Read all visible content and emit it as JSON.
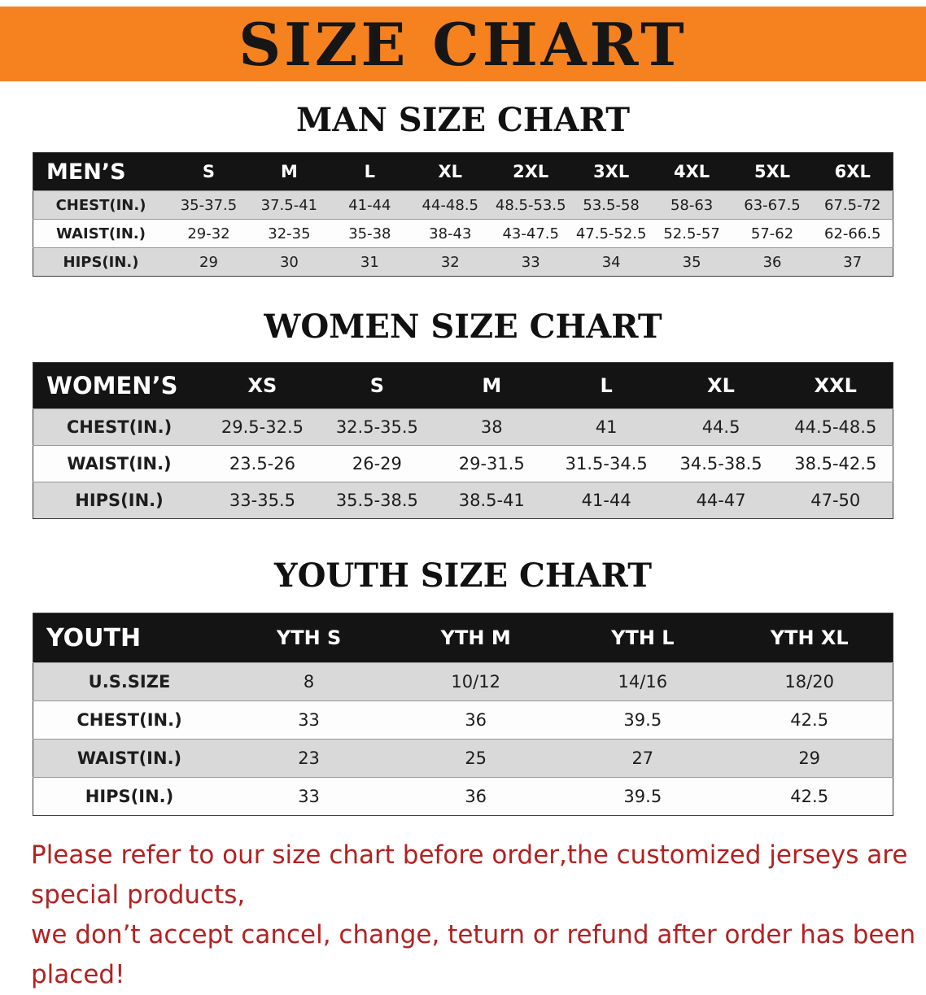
{
  "banner": {
    "title": "SIZE CHART",
    "bg_color": "#f5821f",
    "text_color": "#161616"
  },
  "colors": {
    "table_header_bg": "#141414",
    "table_header_text": "#ffffff",
    "row_shade": "#d9d9d9",
    "footer_text": "#b42121"
  },
  "sections": [
    {
      "key": "men",
      "heading": "MAN SIZE CHART",
      "table": {
        "header": [
          "MEN’S",
          "S",
          "M",
          "L",
          "XL",
          "2XL",
          "3XL",
          "4XL",
          "5XL",
          "6XL"
        ],
        "rows": [
          {
            "label": "CHEST(IN.)",
            "values": [
              "35-37.5",
              "37.5-41",
              "41-44",
              "44-48.5",
              "48.5-53.5",
              "53.5-58",
              "58-63",
              "63-67.5",
              "67.5-72"
            ]
          },
          {
            "label": "WAIST(IN.)",
            "values": [
              "29-32",
              "32-35",
              "35-38",
              "38-43",
              "43-47.5",
              "47.5-52.5",
              "52.5-57",
              "57-62",
              "62-66.5"
            ]
          },
          {
            "label": "HIPS(IN.)",
            "values": [
              "29",
              "30",
              "31",
              "32",
              "33",
              "34",
              "35",
              "36",
              "37"
            ]
          }
        ]
      }
    },
    {
      "key": "women",
      "heading": "WOMEN SIZE CHART",
      "table": {
        "header": [
          "WOMEN’S",
          "XS",
          "S",
          "M",
          "L",
          "XL",
          "XXL"
        ],
        "rows": [
          {
            "label": "CHEST(IN.)",
            "values": [
              "29.5-32.5",
              "32.5-35.5",
              "38",
              "41",
              "44.5",
              "44.5-48.5"
            ]
          },
          {
            "label": "WAIST(IN.)",
            "values": [
              "23.5-26",
              "26-29",
              "29-31.5",
              "31.5-34.5",
              "34.5-38.5",
              "38.5-42.5"
            ]
          },
          {
            "label": "HIPS(IN.)",
            "values": [
              "33-35.5",
              "35.5-38.5",
              "38.5-41",
              "41-44",
              "44-47",
              "47-50"
            ]
          }
        ]
      }
    },
    {
      "key": "youth",
      "heading": "YOUTH SIZE CHART",
      "table": {
        "header": [
          "YOUTH",
          "YTH S",
          "YTH M",
          "YTH L",
          "YTH XL"
        ],
        "rows": [
          {
            "label": "U.S.SIZE",
            "values": [
              "8",
              "10/12",
              "14/16",
              "18/20"
            ]
          },
          {
            "label": "CHEST(IN.)",
            "values": [
              "33",
              "36",
              "39.5",
              "42.5"
            ]
          },
          {
            "label": "WAIST(IN.)",
            "values": [
              "23",
              "25",
              "27",
              "29"
            ]
          },
          {
            "label": "HIPS(IN.)",
            "values": [
              "33",
              "36",
              "39.5",
              "42.5"
            ]
          }
        ]
      }
    }
  ],
  "footer": {
    "line1": "Please refer to our size chart before order,the customized jerseys are special products,",
    "line2": "we don’t accept cancel, change, teturn or refund after order has been placed!"
  }
}
